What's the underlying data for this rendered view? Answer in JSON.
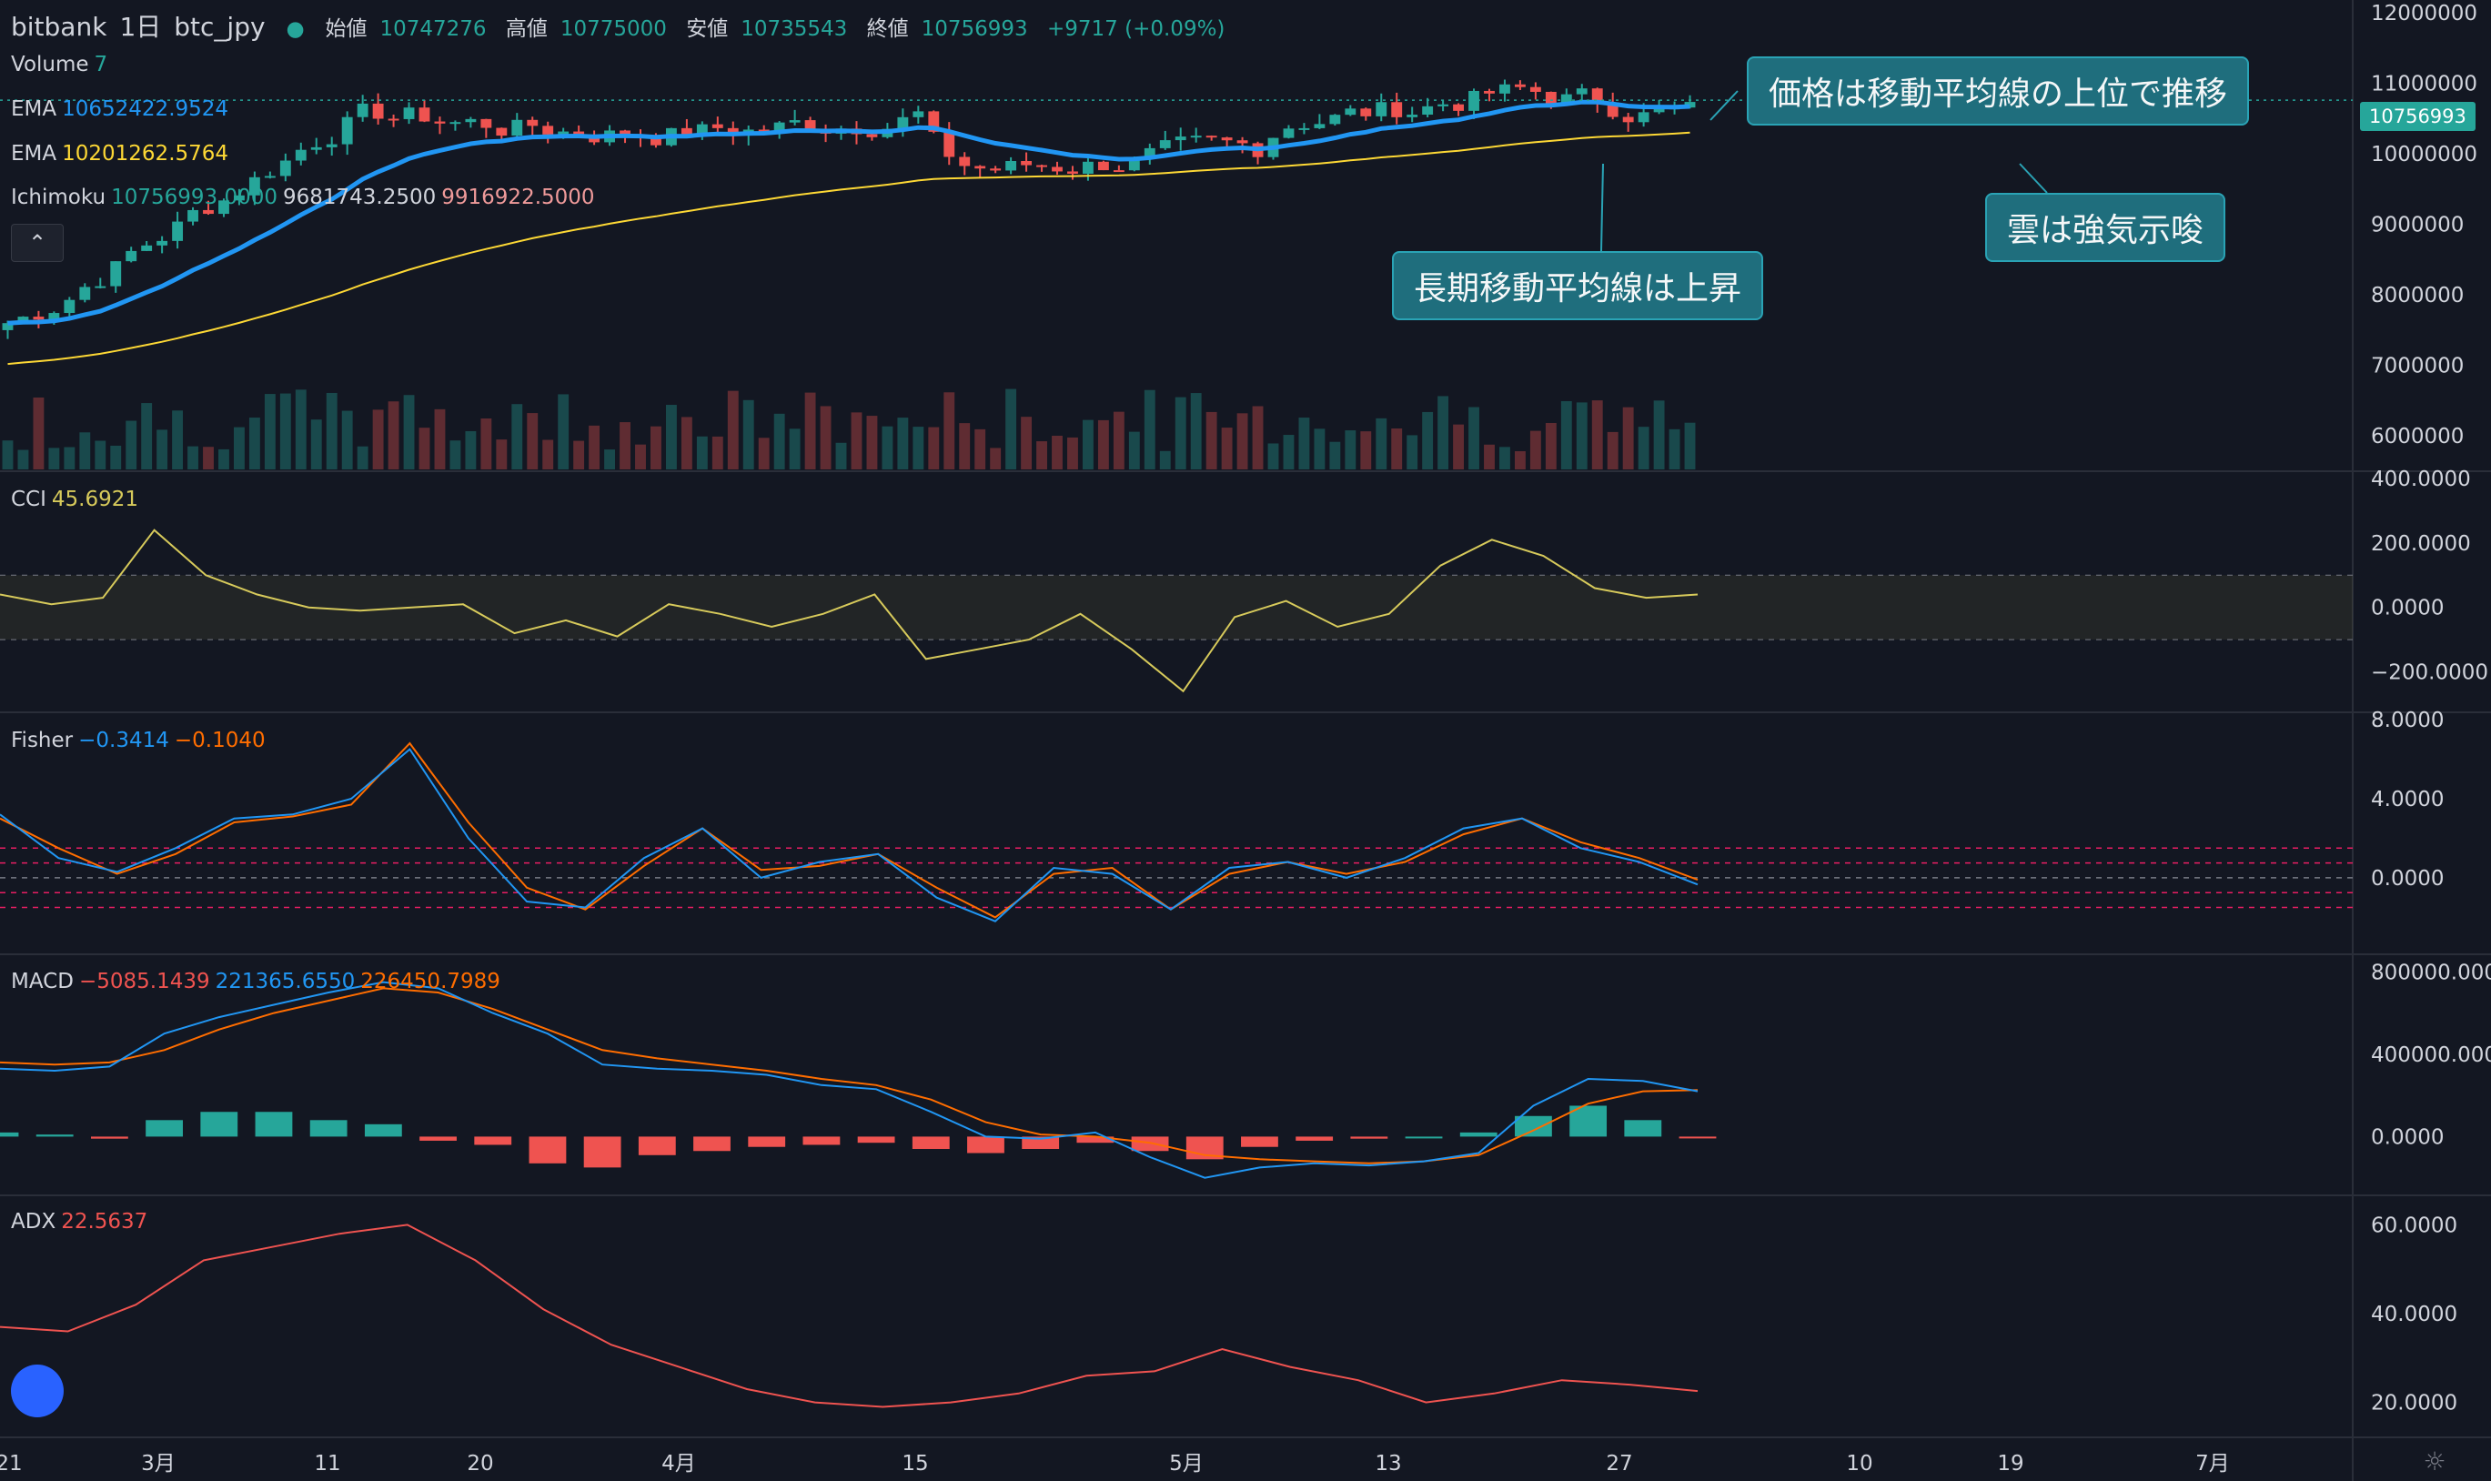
{
  "header": {
    "exchange": "bitbank",
    "interval": "1日",
    "symbol": "btc_jpy",
    "open_label": "始値",
    "open": "10747276",
    "high_label": "高値",
    "high": "10775000",
    "low_label": "安値",
    "low": "10735543",
    "close_label": "終値",
    "close": "10756993",
    "change": "+9717 (+0.09%)"
  },
  "legends": {
    "volume": {
      "name": "Volume",
      "value": "7"
    },
    "ema1": {
      "name": "EMA",
      "value": "10652422.9524"
    },
    "ema2": {
      "name": "EMA",
      "value": "10201262.5764"
    },
    "ichimoku": {
      "name": "Ichimoku",
      "v1": "10756993.0000",
      "v2": "9681743.2500",
      "v3": "9916922.5000"
    },
    "cci": {
      "name": "CCI",
      "value": "45.6921"
    },
    "fisher": {
      "name": "Fisher",
      "v1": "−0.3414",
      "v2": "−0.1040"
    },
    "macd": {
      "name": "MACD",
      "v1": "−5085.1439",
      "v2": "221365.6550",
      "v3": "226450.7989"
    },
    "adx": {
      "name": "ADX",
      "value": "22.5637"
    }
  },
  "annotations": {
    "price_above_ma": "価格は移動平均線の上位で推移",
    "cloud_bullish": "雲は強気示唆",
    "long_ma_rising": "長期移動平均線は上昇"
  },
  "price_pill": "10756993",
  "colors": {
    "background": "#131722",
    "up": "#26a69a",
    "down": "#ef5350",
    "ema_fast": "#2196f3",
    "ema_slow": "#fdd835",
    "macd": "#2196f3",
    "signal": "#ff6d00",
    "adx": "#ef5350",
    "cci": "#d7ca5b",
    "annot_bg": "#1f6e7d"
  },
  "chart_data": [
    {
      "id": "main",
      "type": "candlestick",
      "yticks": [
        "12000000",
        "11000000",
        "10000000",
        "9000000",
        "8000000",
        "7000000",
        "6000000"
      ],
      "ylim": [
        5600000,
        12100000
      ],
      "xticks": [
        "21",
        "3月",
        "11",
        "20",
        "4月",
        "15",
        "5月",
        "13",
        "27",
        "10",
        "19",
        "7月"
      ],
      "series": [
        {
          "name": "EMA",
          "approx_start": 7500000,
          "approx_end": 10650000
        },
        {
          "name": "EMA",
          "approx_start": 7000000,
          "approx_end": 10200000
        }
      ],
      "last_close": 10756993
    },
    {
      "id": "cci",
      "type": "line",
      "yticks": [
        "400.0000",
        "200.0000",
        "0.0000",
        "−200.0000"
      ],
      "ylim": [
        -300,
        400
      ],
      "band": [
        -100,
        100
      ],
      "values": [
        40,
        10,
        30,
        240,
        100,
        40,
        0,
        -10,
        0,
        10,
        -80,
        -40,
        -90,
        10,
        -20,
        -60,
        -20,
        40,
        -160,
        -130,
        -100,
        -20,
        -130,
        -260,
        -30,
        20,
        -60,
        -20,
        130,
        210,
        160,
        60,
        30,
        40
      ]
    },
    {
      "id": "fisher",
      "type": "line",
      "yticks": [
        "8.0000",
        "4.0000",
        "0.0000"
      ],
      "ylim": [
        -3.5,
        8
      ],
      "levels": [
        1.5,
        0.75,
        0,
        -0.75,
        -1.5
      ],
      "series": [
        {
          "name": "Fisher",
          "values": [
            3.2,
            1.0,
            0.3,
            1.5,
            3.0,
            3.2,
            4.0,
            6.5,
            2.0,
            -1.2,
            -1.5,
            1.0,
            2.5,
            0.0,
            0.8,
            1.2,
            -1.0,
            -2.2,
            0.5,
            0.2,
            -1.6,
            0.5,
            0.8,
            0.0,
            1.0,
            2.5,
            3.0,
            1.5,
            0.8,
            -0.34
          ]
        },
        {
          "name": "Trigger",
          "values": [
            3.0,
            1.5,
            0.2,
            1.2,
            2.8,
            3.1,
            3.7,
            6.8,
            2.8,
            -0.5,
            -1.6,
            0.6,
            2.5,
            0.4,
            0.6,
            1.2,
            -0.5,
            -2.0,
            0.2,
            0.5,
            -1.6,
            0.2,
            0.8,
            0.2,
            0.8,
            2.2,
            3.0,
            1.8,
            1.0,
            -0.1
          ]
        }
      ]
    },
    {
      "id": "macd",
      "type": "line",
      "yticks": [
        "800000.0000",
        "400000.0000",
        "0.0000"
      ],
      "ylim": [
        -250000,
        850000
      ],
      "series": [
        {
          "name": "MACD",
          "values": [
            330000,
            320000,
            340000,
            500000,
            580000,
            640000,
            700000,
            750000,
            720000,
            600000,
            500000,
            350000,
            330000,
            320000,
            300000,
            250000,
            230000,
            120000,
            0,
            -10000,
            20000,
            -100000,
            -200000,
            -150000,
            -130000,
            -140000,
            -120000,
            -80000,
            150000,
            280000,
            270000,
            220000
          ]
        },
        {
          "name": "Signal",
          "values": [
            360000,
            350000,
            360000,
            420000,
            520000,
            600000,
            660000,
            720000,
            700000,
            620000,
            520000,
            420000,
            380000,
            350000,
            320000,
            280000,
            250000,
            180000,
            70000,
            10000,
            0,
            -30000,
            -90000,
            -110000,
            -120000,
            -130000,
            -120000,
            -90000,
            30000,
            160000,
            220000,
            226000
          ]
        },
        {
          "name": "Histogram",
          "values": [
            20000,
            10000,
            -10000,
            80000,
            120000,
            120000,
            80000,
            60000,
            -20000,
            -40000,
            -130000,
            -150000,
            -90000,
            -70000,
            -50000,
            -40000,
            -30000,
            -60000,
            -80000,
            -60000,
            -30000,
            -70000,
            -110000,
            -50000,
            -20000,
            -10000,
            0,
            20000,
            100000,
            150000,
            80000,
            -5000
          ]
        }
      ]
    },
    {
      "id": "adx",
      "type": "line",
      "yticks": [
        "60.0000",
        "40.0000",
        "20.0000"
      ],
      "ylim": [
        15,
        65
      ],
      "values": [
        37,
        36,
        42,
        52,
        55,
        58,
        60,
        52,
        41,
        33,
        28,
        23,
        20,
        19,
        20,
        22,
        26,
        27,
        32,
        28,
        25,
        20,
        22,
        25,
        24,
        22.56
      ]
    }
  ]
}
